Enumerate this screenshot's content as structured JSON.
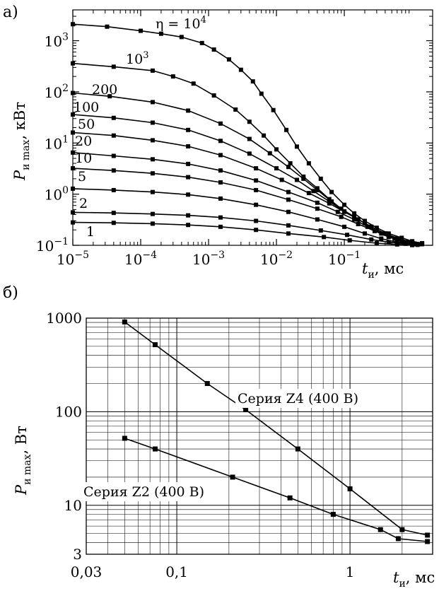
{
  "chart_data": [
    {
      "panel_label": "а)",
      "type": "line",
      "xscale": "log",
      "yscale": "log",
      "xlim": [
        1e-05,
        2
      ],
      "ylim": [
        0.1,
        4000
      ],
      "xticks": [
        {
          "value": 1e-05,
          "base": "10",
          "exp": "−5"
        },
        {
          "value": 0.0001,
          "base": "10",
          "exp": "−4"
        },
        {
          "value": 0.001,
          "base": "10",
          "exp": "−3"
        },
        {
          "value": 0.01,
          "base": "10",
          "exp": "−2"
        },
        {
          "value": 0.1,
          "base": "10",
          "exp": "−1"
        }
      ],
      "yticks": [
        {
          "value": 0.1,
          "base": "10",
          "exp": "−1"
        },
        {
          "value": 1,
          "base": "10",
          "exp": "0"
        },
        {
          "value": 10,
          "base": "10",
          "exp": "1"
        },
        {
          "value": 100,
          "base": "10",
          "exp": "2"
        },
        {
          "value": 1000,
          "base": "10",
          "exp": "3"
        }
      ],
      "xlabel": {
        "var": "t",
        "sub": "и",
        "unit": ", мс"
      },
      "ylabel": {
        "var": "P",
        "sub": "и max",
        "unit": ", кВт"
      },
      "grid": false,
      "series": [
        {
          "label": "η = 10",
          "label_sup": "4",
          "x": [
            1e-05,
            3.2e-05,
            0.0001,
            0.0002,
            0.0004,
            0.0008,
            0.0012,
            0.002,
            0.003,
            0.0045,
            0.006,
            0.009,
            0.014,
            0.02,
            0.03,
            0.045,
            0.065,
            0.1,
            0.14,
            0.2,
            0.3,
            0.45,
            0.7,
            1.0,
            1.4
          ],
          "y": [
            2100,
            1880,
            1560,
            1370,
            1180,
            900,
            670,
            430,
            270,
            160,
            92,
            44,
            18,
            8.5,
            4,
            2,
            1.1,
            0.62,
            0.42,
            0.3,
            0.22,
            0.17,
            0.14,
            0.12,
            0.11
          ]
        },
        {
          "label": "10",
          "label_sup": "3",
          "x": [
            1e-05,
            4e-05,
            0.00015,
            0.0003,
            0.0006,
            0.0012,
            0.0025,
            0.004,
            0.0065,
            0.01,
            0.016,
            0.025,
            0.04,
            0.06,
            0.09,
            0.14,
            0.2,
            0.3,
            0.45,
            0.7,
            1.0,
            1.4
          ],
          "y": [
            360,
            310,
            260,
            200,
            145,
            85,
            45,
            26,
            14,
            7.5,
            4,
            2.2,
            1.3,
            0.8,
            0.52,
            0.36,
            0.27,
            0.2,
            0.16,
            0.13,
            0.115,
            0.105
          ]
        },
        {
          "label": "200",
          "x": [
            1e-05,
            3.5e-05,
            0.00015,
            0.0005,
            0.0015,
            0.004,
            0.008,
            0.015,
            0.025,
            0.04,
            0.065,
            0.1,
            0.16,
            0.25,
            0.4,
            0.6,
            0.9,
            1.3
          ],
          "y": [
            95,
            82,
            63,
            43,
            24,
            12,
            6.3,
            3.4,
            2,
            1.2,
            0.72,
            0.46,
            0.32,
            0.23,
            0.17,
            0.135,
            0.115,
            0.105
          ]
        },
        {
          "label": "100",
          "x": [
            1e-05,
            4e-05,
            0.00015,
            0.0005,
            0.0015,
            0.004,
            0.01,
            0.02,
            0.035,
            0.06,
            0.1,
            0.16,
            0.25,
            0.4,
            0.6,
            0.9,
            1.3
          ],
          "y": [
            36,
            31,
            25,
            18,
            11,
            6.2,
            3.2,
            1.9,
            1.15,
            0.72,
            0.46,
            0.32,
            0.23,
            0.17,
            0.135,
            0.115,
            0.105
          ]
        },
        {
          "label": "50",
          "x": [
            1e-05,
            4e-05,
            0.00015,
            0.0005,
            0.0015,
            0.005,
            0.012,
            0.03,
            0.06,
            0.1,
            0.16,
            0.25,
            0.4,
            0.6,
            0.9,
            1.3
          ],
          "y": [
            16,
            14,
            11.3,
            8.6,
            5.8,
            3.2,
            1.9,
            1.05,
            0.66,
            0.45,
            0.32,
            0.23,
            0.17,
            0.135,
            0.115,
            0.105
          ]
        },
        {
          "label": "20",
          "x": [
            1e-05,
            4e-05,
            0.00015,
            0.0005,
            0.0015,
            0.005,
            0.015,
            0.04,
            0.08,
            0.14,
            0.22,
            0.35,
            0.55,
            0.8,
            1.2
          ],
          "y": [
            6.5,
            5.6,
            4.8,
            3.9,
            2.9,
            1.85,
            1.1,
            0.68,
            0.45,
            0.32,
            0.23,
            0.17,
            0.135,
            0.115,
            0.105
          ]
        },
        {
          "label": "10",
          "x": [
            1e-05,
            4e-05,
            0.00015,
            0.0005,
            0.0015,
            0.005,
            0.015,
            0.04,
            0.09,
            0.16,
            0.28,
            0.45,
            0.7,
            1.1
          ],
          "y": [
            3.2,
            2.9,
            2.55,
            2.15,
            1.7,
            1.2,
            0.78,
            0.52,
            0.36,
            0.26,
            0.19,
            0.145,
            0.12,
            0.105
          ]
        },
        {
          "label": "5",
          "x": [
            1e-05,
            4e-05,
            0.00015,
            0.0005,
            0.0015,
            0.005,
            0.015,
            0.04,
            0.1,
            0.2,
            0.35,
            0.6,
            1.0
          ],
          "y": [
            1.28,
            1.2,
            1.1,
            0.98,
            0.82,
            0.62,
            0.45,
            0.32,
            0.23,
            0.17,
            0.135,
            0.115,
            0.105
          ]
        },
        {
          "label": "2",
          "x": [
            1e-05,
            4e-05,
            0.00015,
            0.0005,
            0.0015,
            0.005,
            0.015,
            0.045,
            0.11,
            0.25,
            0.45,
            0.8,
            1.2
          ],
          "y": [
            0.44,
            0.43,
            0.41,
            0.385,
            0.35,
            0.3,
            0.245,
            0.195,
            0.16,
            0.13,
            0.115,
            0.107,
            0.102
          ]
        },
        {
          "label": "1",
          "x": [
            1e-05,
            4e-05,
            0.00015,
            0.0005,
            0.0015,
            0.005,
            0.015,
            0.05,
            0.12,
            0.3,
            0.6,
            1.0
          ],
          "y": [
            0.28,
            0.275,
            0.265,
            0.25,
            0.23,
            0.2,
            0.17,
            0.145,
            0.125,
            0.11,
            0.104,
            0.101
          ]
        }
      ]
    },
    {
      "panel_label": "б)",
      "type": "line",
      "xscale": "log",
      "yscale": "log",
      "xlim": [
        0.03,
        3
      ],
      "ylim": [
        3,
        1000
      ],
      "xticks": [
        {
          "value": 0.03,
          "label": "0,03"
        },
        {
          "value": 0.1,
          "label": "0,1"
        },
        {
          "value": 1,
          "label": "1"
        }
      ],
      "yticks": [
        {
          "value": 3,
          "label": "3"
        },
        {
          "value": 10,
          "label": "10"
        },
        {
          "value": 100,
          "label": "100"
        },
        {
          "value": 1000,
          "label": "1000"
        }
      ],
      "xlabel": {
        "var": "t",
        "sub": "и",
        "unit": ", мс"
      },
      "ylabel": {
        "var": "P",
        "sub": "и max",
        "unit": ", Вт"
      },
      "grid": true,
      "series": [
        {
          "label": "Серия  Z4  (400  В)",
          "x": [
            0.05,
            0.075,
            0.15,
            0.25,
            0.5,
            1.0,
            2.0,
            2.8
          ],
          "y": [
            910,
            520,
            200,
            105,
            40,
            15,
            5.5,
            4.8
          ]
        },
        {
          "label": "Серия  Z2  (400  В)",
          "x": [
            0.05,
            0.075,
            0.21,
            0.45,
            0.8,
            1.5,
            1.9,
            2.8
          ],
          "y": [
            52,
            40,
            20,
            12,
            8,
            5.5,
            4.4,
            4.1
          ]
        }
      ]
    }
  ]
}
